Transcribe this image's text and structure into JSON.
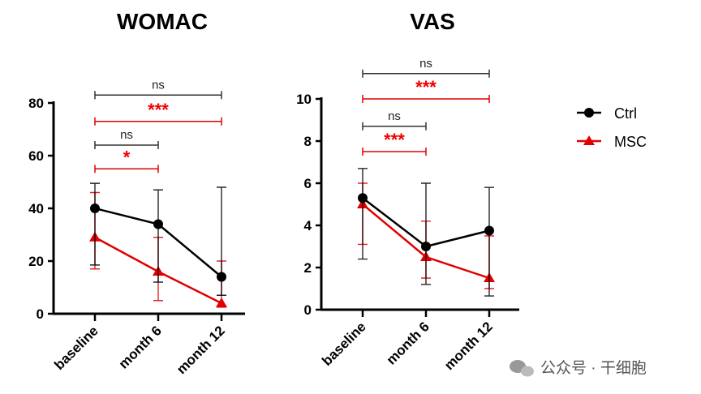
{
  "colors": {
    "Ctrl": "#000000",
    "MSC": "#e00000"
  },
  "legend": [
    "Ctrl",
    "MSC"
  ],
  "watermark": "公众号 · 干细胞",
  "chart_data": [
    {
      "type": "line",
      "title": "WOMAC",
      "categories": [
        "baseline",
        "month 6",
        "month 12"
      ],
      "ylim": [
        0,
        80
      ],
      "yticks": [
        0,
        20,
        40,
        60,
        80
      ],
      "series": [
        {
          "name": "Ctrl",
          "values": [
            40,
            34,
            14
          ],
          "err_low": [
            18.5,
            12,
            7
          ],
          "err_high": [
            49.5,
            47,
            48
          ]
        },
        {
          "name": "MSC",
          "values": [
            29,
            16,
            4
          ],
          "err_low": [
            17,
            5,
            2.5
          ],
          "err_high": [
            46,
            29,
            20
          ]
        }
      ],
      "annotations": [
        {
          "from": 0,
          "to": 2,
          "level": 83,
          "label": "ns",
          "series": "Ctrl"
        },
        {
          "from": 0,
          "to": 2,
          "level": 73,
          "label": "***",
          "series": "MSC"
        },
        {
          "from": 0,
          "to": 1,
          "level": 64,
          "label": "ns",
          "series": "Ctrl"
        },
        {
          "from": 0,
          "to": 1,
          "level": 55,
          "label": "*",
          "series": "MSC"
        }
      ]
    },
    {
      "type": "line",
      "title": "VAS",
      "categories": [
        "baseline",
        "month 6",
        "month 12"
      ],
      "ylim": [
        0,
        10
      ],
      "yticks": [
        0,
        2,
        4,
        6,
        8,
        10
      ],
      "series": [
        {
          "name": "Ctrl",
          "values": [
            5.3,
            3.0,
            3.75
          ],
          "err_low": [
            2.4,
            1.2,
            0.65
          ],
          "err_high": [
            6.7,
            6.0,
            5.8
          ]
        },
        {
          "name": "MSC",
          "values": [
            5.0,
            2.5,
            1.5
          ],
          "err_low": [
            3.1,
            1.5,
            1.0
          ],
          "err_high": [
            6.0,
            4.2,
            3.5
          ]
        }
      ],
      "annotations": [
        {
          "from": 0,
          "to": 2,
          "level": 11.2,
          "label": "ns",
          "series": "Ctrl"
        },
        {
          "from": 0,
          "to": 2,
          "level": 10.0,
          "label": "***",
          "series": "MSC"
        },
        {
          "from": 0,
          "to": 1,
          "level": 8.7,
          "label": "ns",
          "series": "Ctrl"
        },
        {
          "from": 0,
          "to": 1,
          "level": 7.5,
          "label": "***",
          "series": "MSC"
        }
      ]
    }
  ]
}
